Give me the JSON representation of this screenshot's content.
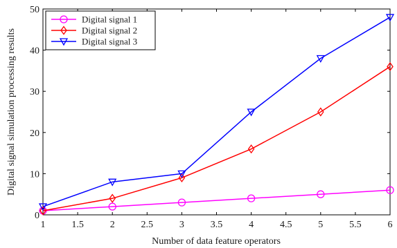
{
  "chart_data": {
    "type": "line",
    "title": "",
    "xlabel": "Number of data feature operators",
    "ylabel": "Digital signal simulation processing results",
    "x": [
      1,
      2,
      3,
      4,
      5,
      6
    ],
    "xlim": [
      1,
      6
    ],
    "ylim": [
      0,
      50
    ],
    "xticks": [
      "1",
      "1.5",
      "2",
      "2.5",
      "3",
      "3.5",
      "4",
      "4.5",
      "5",
      "5.5",
      "6"
    ],
    "yticks": [
      "0",
      "10",
      "20",
      "30",
      "40",
      "50"
    ],
    "grid": false,
    "legend_position": "top-left",
    "series": [
      {
        "name": "Digital signal 1",
        "values": [
          1,
          2,
          3,
          4,
          5,
          6
        ],
        "color": "#ff00ff",
        "marker": "circle"
      },
      {
        "name": "Digital signal 2",
        "values": [
          1,
          4,
          9,
          16,
          25,
          36
        ],
        "color": "#ff0000",
        "marker": "diamond"
      },
      {
        "name": "Digital signal 3",
        "values": [
          2,
          8,
          10,
          25,
          38,
          48
        ],
        "color": "#0000ff",
        "marker": "triangle-down"
      }
    ]
  }
}
